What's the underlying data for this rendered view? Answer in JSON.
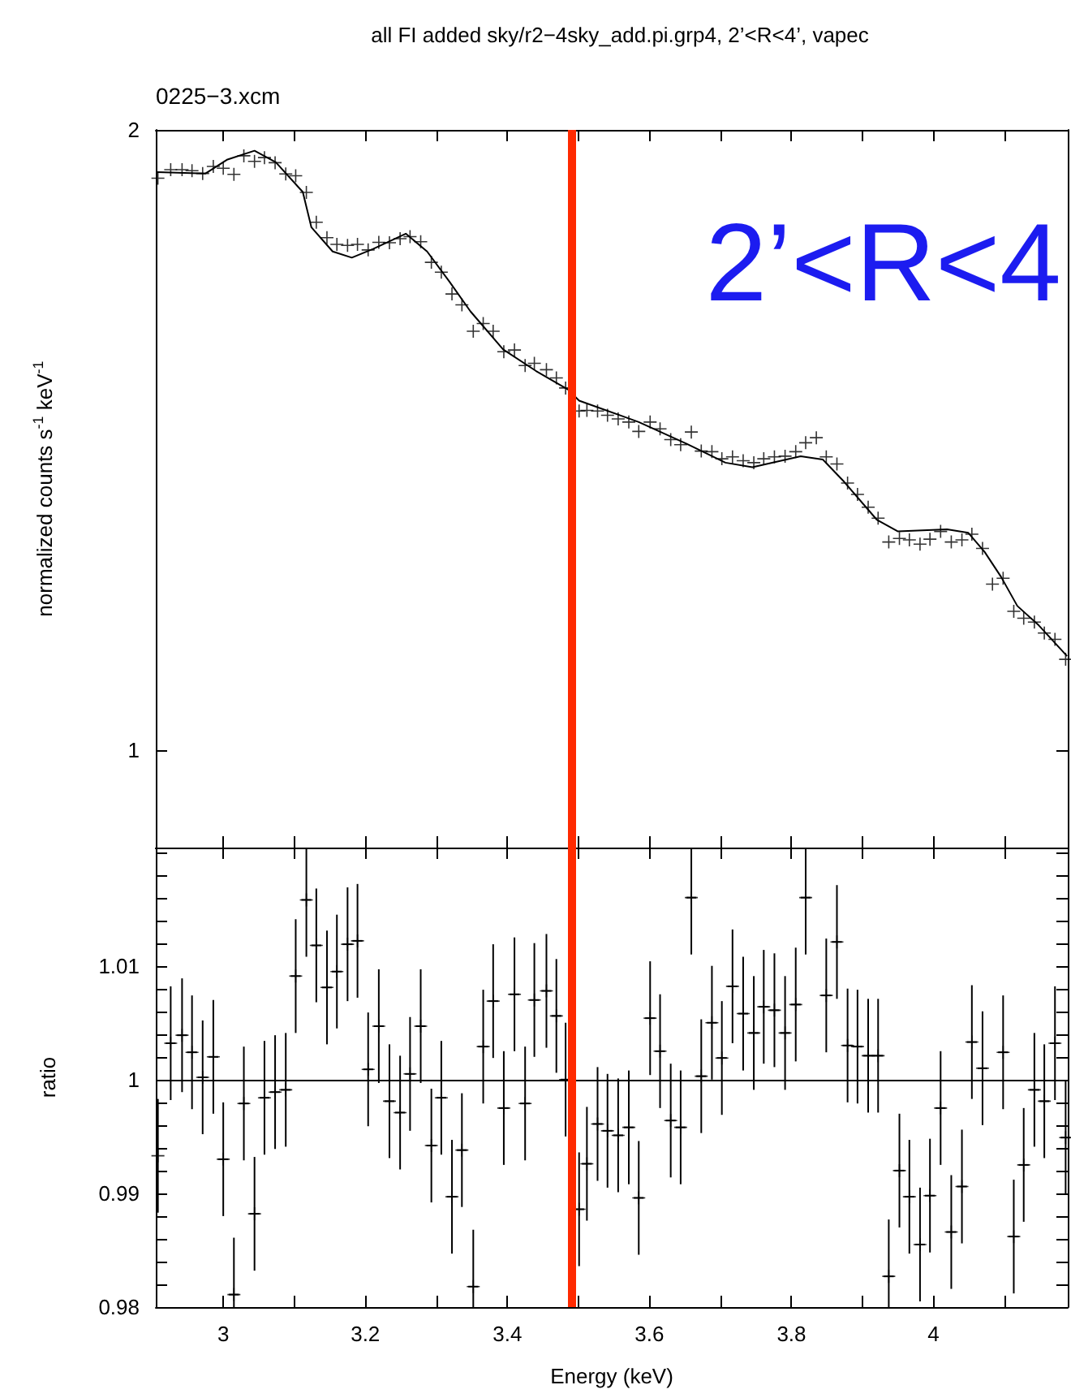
{
  "chart_data": [
    {
      "type": "scatter",
      "title": "all FI added sky/r2−4sky_add.pi.grp4, 2’<R<4’, vapec",
      "ylabel": "normalized counts s$^{-1}$ keV$^{-1}$",
      "annotations": [
        "0225−3.xcm",
        "2’<R<4"
      ],
      "xlim": [
        2.905,
        4.189
      ],
      "xticks": [
        3,
        {
          "value": 3.1,
          "label": null
        },
        3.2,
        {
          "value": 3.3,
          "label": null
        },
        3.4,
        {
          "value": 3.5,
          "label": null
        },
        3.6,
        {
          "value": 3.7,
          "label": null
        },
        3.8,
        {
          "value": 3.9,
          "label": null
        },
        4,
        {
          "value": 4.1,
          "label": null
        }
      ],
      "ylim": [
        0.897,
        2
      ],
      "yticks": [
        1,
        2
      ],
      "log": "y",
      "tick_labels": "y",
      "x": [
        2.908,
        2.926,
        2.942,
        2.956,
        2.971,
        2.986,
        3.0,
        3.015,
        3.029,
        3.044,
        3.058,
        3.073,
        3.088,
        3.102,
        3.117,
        3.131,
        3.146,
        3.16,
        3.175,
        3.189,
        3.204,
        3.219,
        3.234,
        3.249,
        3.263,
        3.278,
        3.293,
        3.307,
        3.322,
        3.336,
        3.352,
        3.366,
        3.38,
        3.395,
        3.41,
        3.425,
        3.438,
        3.455,
        3.469,
        3.482,
        3.501,
        3.512,
        3.527,
        3.541,
        3.556,
        3.571,
        3.585,
        3.601,
        3.615,
        3.63,
        3.644,
        3.659,
        3.673,
        3.688,
        3.702,
        3.717,
        3.732,
        3.747,
        3.761,
        3.776,
        3.791,
        3.806,
        3.82,
        3.835,
        3.849,
        3.864,
        3.879,
        3.893,
        3.908,
        3.922,
        3.937,
        3.952,
        3.966,
        3.981,
        3.995,
        4.01,
        4.025,
        4.04,
        4.054,
        4.069,
        4.083,
        4.098,
        4.113,
        4.127,
        4.142,
        4.156,
        4.171,
        4.186
      ],
      "series": [
        {
          "marker": "cross",
          "color": "#000000",
          "values": [
            1.895,
            1.913,
            1.913,
            1.911,
            1.905,
            1.92,
            1.916,
            1.903,
            1.943,
            1.931,
            1.939,
            1.928,
            1.904,
            1.9,
            1.865,
            1.804,
            1.773,
            1.76,
            1.758,
            1.76,
            1.749,
            1.764,
            1.763,
            1.771,
            1.775,
            1.765,
            1.725,
            1.706,
            1.665,
            1.645,
            1.597,
            1.611,
            1.597,
            1.561,
            1.564,
            1.537,
            1.541,
            1.53,
            1.516,
            1.499,
            1.461,
            1.462,
            1.461,
            1.454,
            1.448,
            1.443,
            1.428,
            1.443,
            1.432,
            1.415,
            1.407,
            1.427,
            1.397,
            1.396,
            1.385,
            1.388,
            1.382,
            1.379,
            1.385,
            1.388,
            1.389,
            1.396,
            1.41,
            1.418,
            1.388,
            1.377,
            1.348,
            1.331,
            1.312,
            1.296,
            1.262,
            1.267,
            1.265,
            1.259,
            1.266,
            1.277,
            1.262,
            1.265,
            1.273,
            1.253,
            1.204,
            1.212,
            1.168,
            1.159,
            1.154,
            1.14,
            1.132,
            1.107
          ]
        },
        {
          "type": "line",
          "color": "#000000",
          "x": [
            2.907,
            2.975,
            3.006,
            3.044,
            3.074,
            3.112,
            3.124,
            3.154,
            3.181,
            3.211,
            3.257,
            3.287,
            3.318,
            3.348,
            3.394,
            3.44,
            3.486,
            3.501,
            3.585,
            3.653,
            3.707,
            3.745,
            3.813,
            3.844,
            3.874,
            3.92,
            3.95,
            4.019,
            4.049,
            4.072,
            4.095,
            4.118,
            4.148,
            4.188
          ],
          "values": [
            1.908,
            1.905,
            1.935,
            1.954,
            1.929,
            1.866,
            1.794,
            1.746,
            1.734,
            1.751,
            1.781,
            1.746,
            1.689,
            1.633,
            1.565,
            1.528,
            1.496,
            1.478,
            1.443,
            1.408,
            1.379,
            1.372,
            1.389,
            1.384,
            1.35,
            1.294,
            1.277,
            1.28,
            1.275,
            1.248,
            1.214,
            1.175,
            1.15,
            1.111
          ]
        }
      ],
      "ref_lines": [
        {
          "axis": "x",
          "value": 3.49,
          "color": "#ff2a00"
        }
      ]
    },
    {
      "type": "scatter",
      "xlabel": "Energy (keV)",
      "ylabel": "ratio",
      "xlim": [
        2.905,
        4.189
      ],
      "xticks": [
        3,
        {
          "value": 3.1,
          "label": null
        },
        3.2,
        {
          "value": 3.3,
          "label": null
        },
        3.4,
        {
          "value": 3.5,
          "label": null
        },
        3.6,
        {
          "value": 3.7,
          "label": null
        },
        3.8,
        {
          "value": 3.9,
          "label": null
        },
        4,
        {
          "value": 4.1,
          "label": null
        }
      ],
      "ylim": [
        0.98,
        1.0204
      ],
      "yticks": [
        0.98,
        {
          "value": 0.982,
          "label": null
        },
        {
          "value": 0.984,
          "label": null
        },
        {
          "value": 0.986,
          "label": null
        },
        {
          "value": 0.988,
          "label": null
        },
        0.99,
        {
          "value": 0.992,
          "label": null
        },
        {
          "value": 0.994,
          "label": null
        },
        {
          "value": 0.996,
          "label": null
        },
        {
          "value": 0.998,
          "label": null
        },
        1,
        {
          "value": 1.002,
          "label": null
        },
        {
          "value": 1.004,
          "label": null
        },
        {
          "value": 1.006,
          "label": null
        },
        {
          "value": 1.008,
          "label": null
        },
        1.01,
        {
          "value": 1.012,
          "label": null
        },
        {
          "value": 1.014,
          "label": null
        },
        {
          "value": 1.016,
          "label": null
        },
        {
          "value": 1.018,
          "label": null
        },
        {
          "value": 1.02,
          "label": null
        }
      ],
      "x": [
        2.908,
        2.926,
        2.942,
        2.956,
        2.971,
        2.986,
        3.0,
        3.015,
        3.029,
        3.044,
        3.058,
        3.073,
        3.088,
        3.102,
        3.117,
        3.131,
        3.146,
        3.16,
        3.175,
        3.189,
        3.204,
        3.219,
        3.234,
        3.249,
        3.263,
        3.278,
        3.293,
        3.307,
        3.322,
        3.336,
        3.352,
        3.366,
        3.38,
        3.395,
        3.41,
        3.425,
        3.438,
        3.455,
        3.469,
        3.482,
        3.501,
        3.512,
        3.527,
        3.541,
        3.556,
        3.571,
        3.585,
        3.601,
        3.615,
        3.63,
        3.644,
        3.659,
        3.673,
        3.688,
        3.702,
        3.717,
        3.732,
        3.747,
        3.761,
        3.776,
        3.791,
        3.806,
        3.82,
        3.849,
        3.864,
        3.879,
        3.893,
        3.908,
        3.922,
        3.937,
        3.952,
        3.966,
        3.981,
        3.995,
        4.01,
        4.025,
        4.04,
        4.054,
        4.069,
        4.098,
        4.113,
        4.127,
        4.142,
        4.156,
        4.171,
        4.186
      ],
      "series": [
        {
          "marker": "cross",
          "color": "#000000",
          "values": [
            0.9933,
            1.0032,
            1.0039,
            1.0024,
            1.0002,
            1.002,
            0.993,
            0.9811,
            0.9979,
            0.9882,
            0.9984,
            0.9989,
            0.9991,
            1.0091,
            1.0158,
            1.0118,
            1.0081,
            1.0095,
            1.0119,
            1.0122,
            1.0009,
            1.0047,
            0.9981,
            0.9971,
            1.0005,
            1.0047,
            0.9942,
            0.9984,
            0.9897,
            0.9938,
            0.9818,
            1.0029,
            1.0069,
            0.9975,
            1.0075,
            0.9979,
            1.007,
            1.0078,
            1.0056,
            1.0,
            0.9886,
            0.9926,
            0.9961,
            0.9955,
            0.9951,
            0.9958,
            0.9896,
            1.0054,
            1.0025,
            0.9964,
            0.9958,
            1.016,
            1.0003,
            1.005,
            1.0019,
            1.0082,
            1.0058,
            1.0041,
            1.0064,
            1.0061,
            1.0041,
            1.0066,
            1.016,
            1.0074,
            1.0121,
            1.003,
            1.0029,
            1.0021,
            1.0021,
            0.9827,
            0.992,
            0.9897,
            0.9855,
            0.9898,
            0.9975,
            0.9866,
            0.9906,
            1.0033,
            1.001,
            1.0024,
            0.9862,
            0.9925,
            0.9991,
            0.9981,
            1.0032,
            0.9949
          ],
          "errors": [
            0.005,
            0.005,
            0.005,
            0.005,
            0.005,
            0.005,
            0.005,
            [
              0.98,
              0.9861
            ],
            0.005,
            0.005,
            0.005,
            0.005,
            0.005,
            0.005,
            [
              1.0108,
              1.0204
            ],
            0.005,
            0.005,
            0.005,
            0.005,
            0.005,
            0.005,
            0.005,
            0.005,
            0.005,
            0.005,
            0.005,
            0.005,
            0.005,
            0.005,
            0.005,
            [
              0.98,
              0.9868
            ],
            0.005,
            0.005,
            0.005,
            0.005,
            0.005,
            0.005,
            0.005,
            0.005,
            0.005,
            0.005,
            0.005,
            0.005,
            0.005,
            0.005,
            0.005,
            0.005,
            0.005,
            0.005,
            0.005,
            0.005,
            [
              1.011,
              1.0204
            ],
            0.005,
            0.005,
            0.005,
            0.005,
            0.005,
            0.005,
            0.005,
            0.005,
            0.005,
            0.005,
            [
              1.011,
              1.0204
            ],
            0.005,
            0.005,
            0.005,
            0.005,
            0.005,
            0.005,
            [
              0.98,
              0.9877
            ],
            0.005,
            0.005,
            0.005,
            0.005,
            0.005,
            0.005,
            0.005,
            0.005,
            0.005,
            0.005,
            0.005,
            0.005,
            0.005,
            0.005,
            0.005,
            0.005
          ],
          "xerrors": [
            null,
            0.007,
            0.007,
            0.007,
            0.007,
            0.007,
            0.007,
            0.007,
            0.007,
            0.007,
            0.007,
            0.007,
            0.007,
            0.007,
            0.007,
            0.007,
            0.007,
            0.007,
            0.007,
            0.007,
            0.007,
            0.007,
            0.007,
            0.007,
            0.007,
            0.007,
            0.007,
            0.007,
            0.007,
            0.007,
            0.007,
            0.007,
            0.007,
            0.007,
            0.007,
            0.007,
            0.007,
            0.007,
            0.007,
            0.007,
            0.007,
            0.007,
            0.007,
            0.007,
            0.007,
            0.007,
            0.007,
            0.007,
            0.007,
            0.007,
            0.007,
            0.007,
            0.007,
            0.007,
            0.007,
            0.007,
            0.007,
            0.007,
            0.007,
            0.007,
            0.007,
            0.007,
            0.007,
            0.007,
            0.007,
            0.007,
            0.007,
            0.007,
            0.007,
            0.007,
            0.007,
            0.007,
            0.007,
            0.007,
            0.007,
            0.007,
            0.007,
            0.007,
            0.007,
            0.007,
            0.007,
            0.007,
            0.007,
            0.007,
            0.007,
            0.007
          ]
        }
      ],
      "ref_lines": [
        {
          "axis": "y",
          "value": 1,
          "color": "#000000"
        },
        {
          "axis": "x",
          "value": 3.49,
          "color": "#ff2a00"
        }
      ]
    }
  ]
}
